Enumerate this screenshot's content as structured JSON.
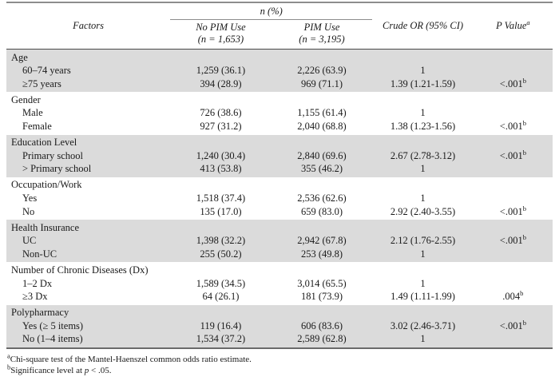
{
  "colors": {
    "row_shade": "#dbdbdb",
    "rule_light": "#8d8d8d",
    "rule_mid": "#6a6a6a",
    "rule_dark": "#4a4a4a",
    "text": "#1a1a1a"
  },
  "table": {
    "header": {
      "factors": "Factors",
      "n_pct": "n (%)",
      "no_pim": {
        "line1": "No PIM Use",
        "line2": "(n = 1,653)"
      },
      "pim": {
        "line1": "PIM Use",
        "line2": "(n = 3,195)"
      },
      "crude_or": "Crude OR (95% CI)",
      "p_value": "P Value",
      "p_value_sup": "a"
    },
    "groups": [
      {
        "label": "Age",
        "rows": [
          {
            "label": "60–74 years",
            "no_pim": "1,259 (36.1)",
            "pim": "2,226 (63.9)",
            "or": "1",
            "p": "",
            "p_sup": ""
          },
          {
            "label": "≥75 years",
            "no_pim": "394 (28.9)",
            "pim": "969 (71.1)",
            "or": "1.39 (1.21-1.59)",
            "p": "<.001",
            "p_sup": "b"
          }
        ]
      },
      {
        "label": "Gender",
        "rows": [
          {
            "label": "Male",
            "no_pim": "726 (38.6)",
            "pim": "1,155 (61.4)",
            "or": "1",
            "p": "",
            "p_sup": ""
          },
          {
            "label": "Female",
            "no_pim": "927 (31.2)",
            "pim": "2,040 (68.8)",
            "or": "1.38 (1.23-1.56)",
            "p": "<.001",
            "p_sup": "b"
          }
        ]
      },
      {
        "label": "Education Level",
        "rows": [
          {
            "label": "Primary school",
            "no_pim": "1,240 (30.4)",
            "pim": "2,840 (69.6)",
            "or": "2.67 (2.78-3.12)",
            "p": "<.001",
            "p_sup": "b"
          },
          {
            "label": "> Primary school",
            "no_pim": "413 (53.8)",
            "pim": "355 (46.2)",
            "or": "1",
            "p": "",
            "p_sup": ""
          }
        ]
      },
      {
        "label": "Occupation/Work",
        "rows": [
          {
            "label": "Yes",
            "no_pim": "1,518 (37.4)",
            "pim": "2,536 (62.6)",
            "or": "1",
            "p": "",
            "p_sup": ""
          },
          {
            "label": "No",
            "no_pim": "135 (17.0)",
            "pim": "659 (83.0)",
            "or": "2.92 (2.40-3.55)",
            "p": "<.001",
            "p_sup": "b"
          }
        ]
      },
      {
        "label": "Health Insurance",
        "rows": [
          {
            "label": "UC",
            "no_pim": "1,398 (32.2)",
            "pim": "2,942 (67.8)",
            "or": "2.12 (1.76-2.55)",
            "p": "<.001",
            "p_sup": "b"
          },
          {
            "label": "Non-UC",
            "no_pim": "255 (50.2)",
            "pim": "253 (49.8)",
            "or": "1",
            "p": "",
            "p_sup": ""
          }
        ]
      },
      {
        "label": "Number of Chronic Diseases (Dx)",
        "rows": [
          {
            "label": "1–2 Dx",
            "no_pim": "1,589 (34.5)",
            "pim": "3,014 (65.5)",
            "or": "1",
            "p": "",
            "p_sup": ""
          },
          {
            "label": "≥3 Dx",
            "no_pim": "64 (26.1)",
            "pim": "181 (73.9)",
            "or": "1.49 (1.11-1.99)",
            "p": ".004",
            "p_sup": "b"
          }
        ]
      },
      {
        "label": "Polypharmacy",
        "rows": [
          {
            "label": "Yes (≥ 5 items)",
            "no_pim": "119 (16.4)",
            "pim": "606 (83.6)",
            "or": "3.02 (2.46-3.71)",
            "p": "<.001",
            "p_sup": "b"
          },
          {
            "label": "No (1–4 items)",
            "no_pim": "1,534 (37.2)",
            "pim": "2,589 (62.8)",
            "or": "1",
            "p": "",
            "p_sup": ""
          }
        ]
      }
    ],
    "footnotes": [
      {
        "sup": "a",
        "pre": "Chi-square test of the Mantel-Haenszel common odds ratio estimate.",
        "italic": "",
        "post": ""
      },
      {
        "sup": "b",
        "pre": "Significance level at ",
        "italic": "p",
        "post": " < .05."
      }
    ]
  }
}
